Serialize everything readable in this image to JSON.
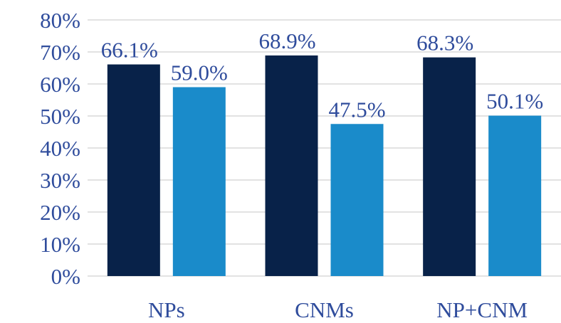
{
  "chart_data": {
    "type": "bar",
    "categories": [
      "NPs",
      "CNMs",
      "NP+CNM"
    ],
    "series": [
      {
        "color": "#082249",
        "values": [
          66.1,
          68.9,
          68.3
        ],
        "value_labels": [
          "66.1%",
          "68.9%",
          "68.3%"
        ]
      },
      {
        "color": "#1a8bca",
        "values": [
          59.0,
          47.5,
          50.1
        ],
        "value_labels": [
          "59.0%",
          "47.5%",
          "50.1%"
        ]
      }
    ],
    "ylim": [
      0,
      80
    ],
    "yticks": [
      {
        "value": 0,
        "label": "0%"
      },
      {
        "value": 10,
        "label": "10%"
      },
      {
        "value": 20,
        "label": "20%"
      },
      {
        "value": 30,
        "label": "30%"
      },
      {
        "value": 40,
        "label": "40%"
      },
      {
        "value": 50,
        "label": "50%"
      },
      {
        "value": 60,
        "label": "60%"
      },
      {
        "value": 70,
        "label": "70%"
      },
      {
        "value": 80,
        "label": "80%"
      }
    ],
    "grid": true
  }
}
